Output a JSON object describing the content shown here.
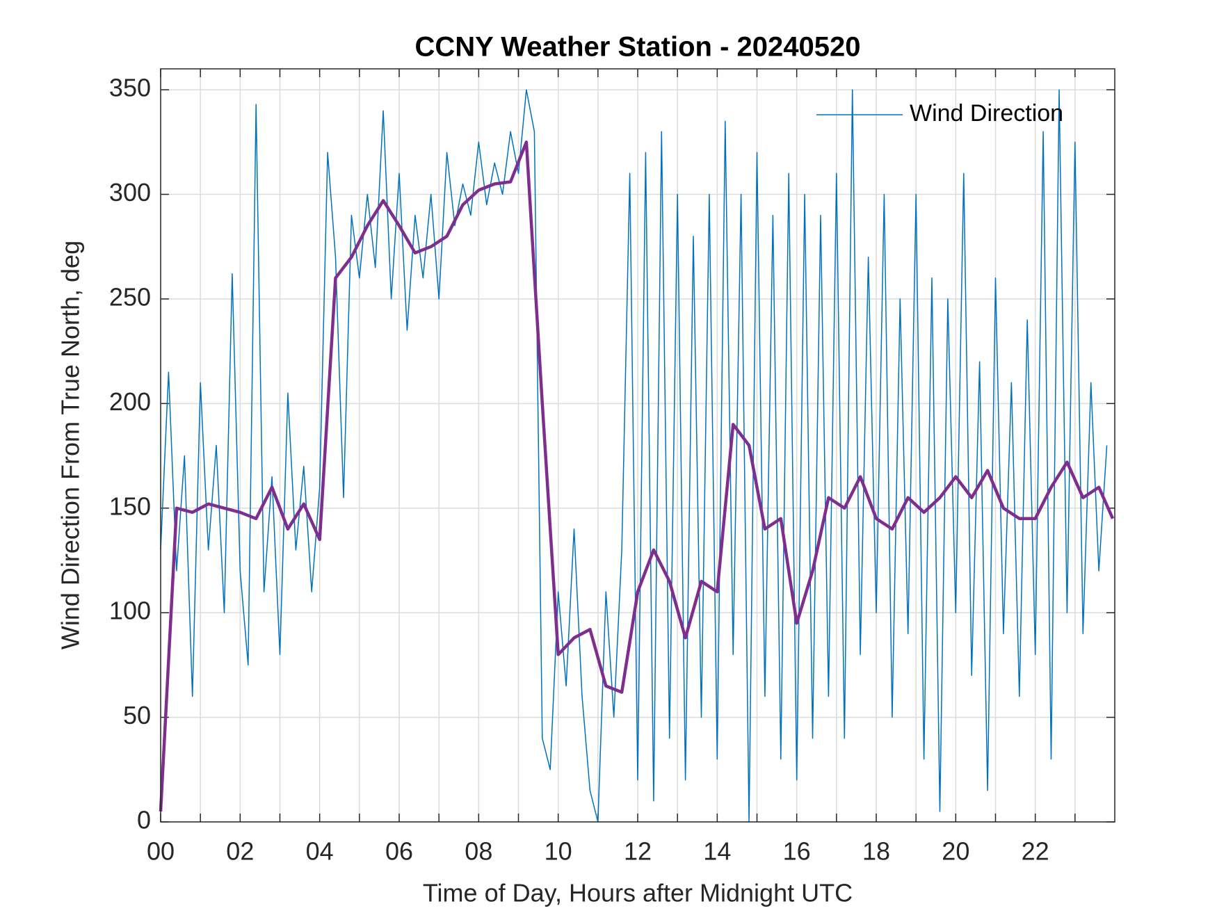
{
  "chart_data": {
    "type": "line",
    "title": "CCNY Weather Station - 20240520",
    "x_label": "Time of Day, Hours after Midnight UTC",
    "y_label": "Wind Direction From True North, deg",
    "xlim": [
      0,
      24
    ],
    "ylim": [
      0,
      360
    ],
    "xticks": [
      {
        "value": 0,
        "label": "00"
      },
      {
        "value": 2,
        "label": "02"
      },
      {
        "value": 4,
        "label": "04"
      },
      {
        "value": 6,
        "label": "06"
      },
      {
        "value": 8,
        "label": "08"
      },
      {
        "value": 10,
        "label": "10"
      },
      {
        "value": 12,
        "label": "12"
      },
      {
        "value": 14,
        "label": "14"
      },
      {
        "value": 16,
        "label": "16"
      },
      {
        "value": 18,
        "label": "18"
      },
      {
        "value": 20,
        "label": "20"
      },
      {
        "value": 22,
        "label": "22"
      }
    ],
    "x_minor_ticks": [
      1,
      3,
      5,
      7,
      9,
      11,
      13,
      15,
      17,
      19,
      21,
      23
    ],
    "yticks": [
      0,
      50,
      100,
      150,
      200,
      250,
      300,
      350
    ],
    "grid": true,
    "legend": "upper right",
    "series": [
      {
        "name": "Wind Direction",
        "color": "#0072bd",
        "width": 1.5,
        "x": [
          0,
          0.2,
          0.4,
          0.6,
          0.8,
          1,
          1.2,
          1.4,
          1.6,
          1.8,
          2,
          2.2,
          2.4,
          2.6,
          2.8,
          3,
          3.2,
          3.4,
          3.6,
          3.8,
          4,
          4.2,
          4.4,
          4.6,
          4.8,
          5,
          5.2,
          5.4,
          5.6,
          5.8,
          6,
          6.2,
          6.4,
          6.6,
          6.8,
          7,
          7.2,
          7.4,
          7.6,
          7.8,
          8,
          8.2,
          8.4,
          8.6,
          8.8,
          9,
          9.2,
          9.4,
          9.6,
          9.8,
          10,
          10.2,
          10.4,
          10.6,
          10.8,
          11,
          11.2,
          11.4,
          11.6,
          11.8,
          12,
          12.2,
          12.4,
          12.6,
          12.8,
          13,
          13.2,
          13.4,
          13.6,
          13.8,
          14,
          14.2,
          14.4,
          14.6,
          14.8,
          15,
          15.2,
          15.4,
          15.6,
          15.8,
          16,
          16.2,
          16.4,
          16.6,
          16.8,
          17,
          17.2,
          17.4,
          17.6,
          17.8,
          18,
          18.2,
          18.4,
          18.6,
          18.8,
          19,
          19.2,
          19.4,
          19.6,
          19.8,
          20,
          20.2,
          20.4,
          20.6,
          20.8,
          21,
          21.2,
          21.4,
          21.6,
          21.8,
          22,
          22.2,
          22.4,
          22.6,
          22.8,
          23,
          23.2,
          23.4,
          23.6,
          23.8
        ],
        "values": [
          130,
          215,
          120,
          175,
          60,
          210,
          130,
          180,
          100,
          262,
          120,
          75,
          343,
          110,
          165,
          80,
          205,
          130,
          170,
          110,
          160,
          320,
          270,
          155,
          290,
          260,
          300,
          265,
          340,
          250,
          310,
          235,
          290,
          260,
          300,
          250,
          320,
          285,
          305,
          290,
          325,
          295,
          315,
          300,
          330,
          310,
          350,
          330,
          40,
          25,
          110,
          65,
          140,
          60,
          15,
          0,
          110,
          50,
          130,
          310,
          20,
          320,
          10,
          330,
          40,
          300,
          20,
          280,
          50,
          300,
          30,
          335,
          80,
          300,
          0,
          320,
          60,
          290,
          30,
          310,
          20,
          300,
          40,
          290,
          60,
          310,
          40,
          350,
          80,
          270,
          100,
          300,
          50,
          250,
          90,
          300,
          30,
          260,
          5,
          250,
          100,
          310,
          70,
          220,
          15,
          260,
          90,
          210,
          60,
          240,
          80,
          330,
          30,
          350,
          100,
          325,
          90,
          210,
          120,
          180
        ]
      },
      {
        "color": "#7e2f8e",
        "width": 4.5,
        "x": [
          0,
          0.4,
          0.8,
          1.2,
          1.6,
          2,
          2.4,
          2.8,
          3.2,
          3.6,
          4,
          4.4,
          4.8,
          5.2,
          5.6,
          6,
          6.4,
          6.8,
          7.2,
          7.6,
          8,
          8.4,
          8.8,
          9.2,
          9.6,
          10,
          10.4,
          10.8,
          11.2,
          11.6,
          12,
          12.4,
          12.8,
          13.2,
          13.6,
          14,
          14.4,
          14.8,
          15.2,
          15.6,
          16,
          16.4,
          16.8,
          17.2,
          17.6,
          18,
          18.4,
          18.8,
          19.2,
          19.6,
          20,
          20.4,
          20.8,
          21.2,
          21.6,
          22,
          22.4,
          22.8,
          23.2,
          23.6,
          23.95
        ],
        "values": [
          5,
          150,
          148,
          152,
          150,
          148,
          145,
          160,
          140,
          152,
          135,
          260,
          270,
          285,
          297,
          285,
          272,
          275,
          280,
          295,
          302,
          305,
          306,
          325,
          200,
          80,
          88,
          92,
          65,
          62,
          110,
          130,
          115,
          88,
          115,
          110,
          190,
          180,
          140,
          145,
          95,
          120,
          155,
          150,
          165,
          145,
          140,
          155,
          148,
          155,
          165,
          155,
          168,
          150,
          145,
          145,
          160,
          172,
          155,
          160,
          145
        ]
      }
    ]
  }
}
